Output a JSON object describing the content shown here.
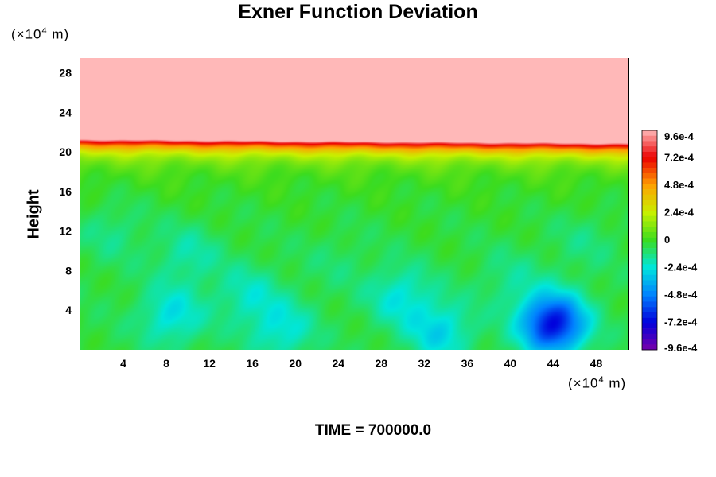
{
  "chart_data": {
    "type": "heatmap",
    "title": "Exner Function Deviation",
    "xlabel": "",
    "ylabel": "Height",
    "x_unit": {
      "prefix": "(×10",
      "exp": "4",
      "suffix": " m)"
    },
    "y_unit": {
      "prefix": "(×10",
      "exp": "4",
      "suffix": " m)"
    },
    "xlim": [
      0,
      51
    ],
    "ylim": [
      0,
      29.5
    ],
    "x_ticks": [
      4,
      8,
      12,
      16,
      20,
      24,
      28,
      32,
      36,
      40,
      44,
      48
    ],
    "y_ticks": [
      4,
      8,
      12,
      16,
      20,
      24,
      28
    ],
    "colorbar": {
      "range": [
        -0.00096,
        0.00096
      ],
      "tick_values": [
        0.00096,
        0.00072,
        0.00048,
        0.00024,
        0,
        -0.00024,
        -0.00048,
        -0.00072,
        -0.00096
      ],
      "tick_labels": [
        "9.6e-4",
        "7.2e-4",
        "4.8e-4",
        "2.4e-4",
        "0",
        "-2.4e-4",
        "-4.8e-4",
        "-7.2e-4",
        "-9.6e-4"
      ]
    },
    "field": {
      "background_value": -5e-05,
      "band_top_height": 21.2,
      "upper_value": 0.00096,
      "band_peak_value": 0.0009,
      "minima": [
        {
          "x": 44,
          "y": 2.6,
          "value": -0.00072
        },
        {
          "x": 8.5,
          "y": 3.4,
          "value": -0.00026
        },
        {
          "x": 18.8,
          "y": 2.0,
          "value": -0.00024
        },
        {
          "x": 33.5,
          "y": 1.8,
          "value": -0.00028
        },
        {
          "x": 29.8,
          "y": 5.4,
          "value": -0.00024
        },
        {
          "x": 15.6,
          "y": 5.5,
          "value": -0.0002
        },
        {
          "x": 10,
          "y": 9.6,
          "value": -0.00018
        },
        {
          "x": 3,
          "y": 12,
          "value": -0.00014
        },
        {
          "x": 40,
          "y": 7,
          "value": -0.00014
        },
        {
          "x": 47,
          "y": 11,
          "value": -0.00012
        },
        {
          "x": 24,
          "y": 9,
          "value": -0.0001
        }
      ]
    }
  },
  "footer": {
    "time_label": "TIME = 700000.0"
  }
}
